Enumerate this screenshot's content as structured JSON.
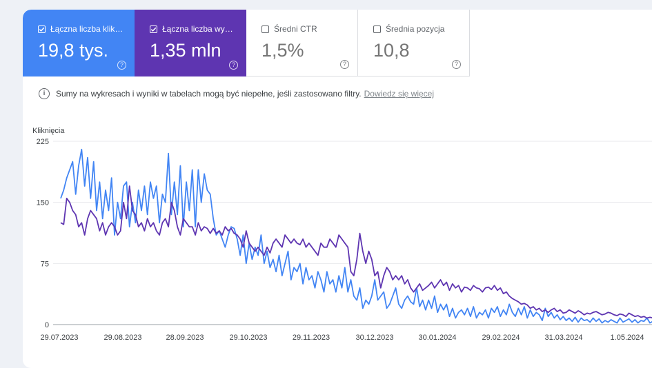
{
  "metrics": [
    {
      "label": "Łączna liczba klik…",
      "value": "19,8 tys.",
      "checked": true,
      "color": "#4285f4"
    },
    {
      "label": "Łączna liczba wy…",
      "value": "1,35 mln",
      "checked": true,
      "color": "#5e35b1"
    },
    {
      "label": "Średni CTR",
      "value": "1,5%",
      "checked": false
    },
    {
      "label": "Średnia pozycja",
      "value": "10,8",
      "checked": false
    }
  ],
  "notice": {
    "text": "Sumy na wykresach i wyniki w tabelach mogą być niepełne, jeśli zastosowano filtry.",
    "link": "Dowiedz się więcej"
  },
  "chart_data": {
    "type": "line",
    "ylabel": "Kliknięcia",
    "ylim": [
      0,
      225
    ],
    "y_ticks": [
      "0",
      "75",
      "150",
      "225"
    ],
    "x_ticks": [
      "29.07.2023",
      "29.08.2023",
      "28.09.2023",
      "29.10.2023",
      "29.11.2023",
      "30.12.2023",
      "30.01.2024",
      "29.02.2024",
      "31.03.2024",
      "1.05.2024"
    ],
    "grid": true,
    "series": [
      {
        "name": "Łączna liczba kliknięć",
        "color": "#4285f4",
        "values": [
          155,
          165,
          180,
          190,
          200,
          160,
          195,
          215,
          170,
          205,
          155,
          200,
          140,
          175,
          130,
          165,
          140,
          180,
          110,
          150,
          130,
          170,
          175,
          120,
          150,
          125,
          165,
          140,
          170,
          135,
          175,
          155,
          170,
          125,
          160,
          150,
          210,
          135,
          175,
          135,
          195,
          120,
          175,
          140,
          190,
          120,
          190,
          150,
          185,
          165,
          160,
          130,
          110,
          115,
          105,
          95,
          110,
          120,
          118,
          105,
          85,
          110,
          75,
          100,
          80,
          95,
          85,
          110,
          75,
          90,
          70,
          80,
          65,
          85,
          60,
          75,
          90,
          55,
          70,
          65,
          75,
          50,
          70,
          55,
          60,
          45,
          65,
          55,
          40,
          65,
          50,
          55,
          40,
          60,
          45,
          70,
          40,
          55,
          35,
          30,
          45,
          20,
          30,
          25,
          35,
          55,
          30,
          35,
          40,
          20,
          25,
          35,
          45,
          25,
          20,
          30,
          35,
          28,
          25,
          45,
          22,
          30,
          18,
          30,
          20,
          35,
          15,
          25,
          18,
          25,
          10,
          20,
          8,
          15,
          18,
          12,
          20,
          10,
          22,
          8,
          15,
          12,
          18,
          8,
          20,
          15,
          22,
          10,
          18,
          12,
          25,
          15,
          10,
          20,
          12,
          22,
          8,
          18,
          10,
          15,
          12,
          5,
          20,
          10,
          15,
          8,
          12,
          6,
          10,
          5,
          8,
          4,
          9,
          3,
          8,
          5,
          6,
          3,
          8,
          4,
          7,
          2,
          5,
          3,
          6,
          4,
          2,
          8,
          3,
          5,
          7,
          3,
          6,
          2,
          5,
          4,
          8,
          2,
          4,
          6,
          3,
          5,
          2,
          4
        ]
      },
      {
        "name": "Łączna liczba wyświetleń",
        "color": "#5e35b1",
        "values": [
          125,
          123,
          155,
          150,
          140,
          135,
          120,
          125,
          110,
          130,
          140,
          135,
          130,
          115,
          125,
          110,
          120,
          125,
          120,
          110,
          115,
          150,
          130,
          170,
          140,
          135,
          120,
          125,
          115,
          130,
          120,
          125,
          115,
          110,
          125,
          130,
          120,
          150,
          140,
          120,
          110,
          130,
          125,
          120,
          120,
          110,
          125,
          115,
          120,
          118,
          112,
          118,
          112,
          115,
          110,
          120,
          115,
          118,
          112,
          110,
          105,
          95,
          115,
          100,
          95,
          90,
          95,
          90,
          85,
          95,
          88,
          100,
          105,
          100,
          95,
          110,
          105,
          100,
          105,
          100,
          98,
          105,
          95,
          100,
          95,
          90,
          85,
          100,
          95,
          95,
          105,
          100,
          95,
          110,
          105,
          100,
          95,
          65,
          60,
          80,
          112,
          90,
          75,
          90,
          80,
          60,
          65,
          45,
          60,
          70,
          65,
          55,
          60,
          55,
          60,
          50,
          55,
          45,
          40,
          45,
          50,
          42,
          45,
          48,
          52,
          45,
          50,
          55,
          48,
          52,
          42,
          50,
          45,
          48,
          40,
          46,
          45,
          42,
          48,
          45,
          44,
          40,
          45,
          46,
          43,
          48,
          42,
          45,
          38,
          40,
          35,
          32,
          30,
          28,
          25,
          26,
          24,
          20,
          22,
          18,
          20,
          16,
          18,
          15,
          18,
          20,
          16,
          18,
          14,
          15,
          18,
          16,
          14,
          17,
          15,
          12,
          14,
          13,
          15,
          16,
          14,
          12,
          13,
          15,
          14,
          12,
          11,
          13,
          12,
          10,
          14,
          12,
          10,
          11,
          9,
          10,
          8,
          9,
          8,
          7,
          9,
          10,
          8,
          7
        ]
      }
    ]
  }
}
